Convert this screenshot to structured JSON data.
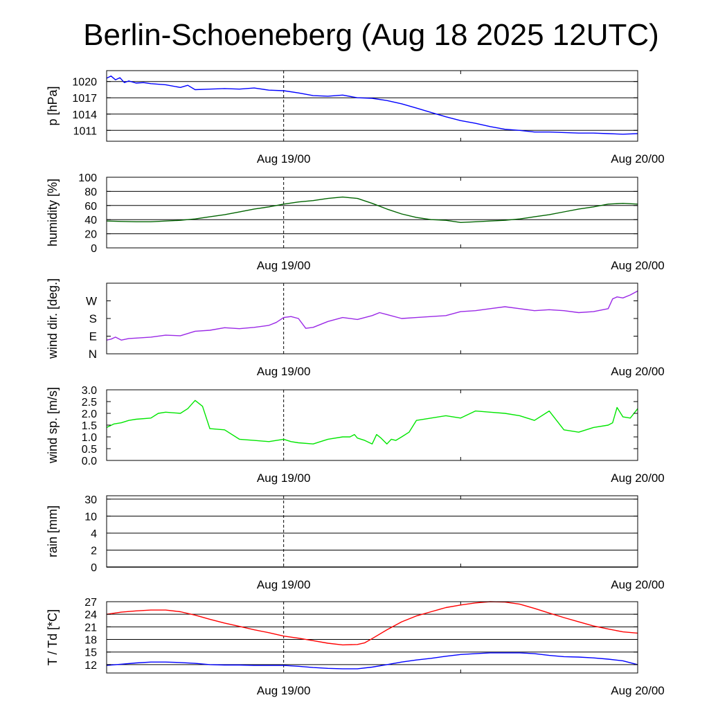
{
  "title": "Berlin-Schoeneberg (Aug 18 2025 12UTC)",
  "chart_data": [
    {
      "id": "pressure",
      "type": "line",
      "ylabel": "p [hPa]",
      "ylim": [
        1009,
        1022
      ],
      "yticks": [
        {
          "v": 1011,
          "l": "1011"
        },
        {
          "v": 1014,
          "l": "1014"
        },
        {
          "v": 1017,
          "l": "1017"
        },
        {
          "v": 1020,
          "l": "1020"
        }
      ],
      "hlines": [
        1011,
        1014,
        1017,
        1020
      ],
      "xticks": [
        {
          "v": 12,
          "l": "Aug 19/00"
        },
        {
          "v": 36,
          "l": "Aug 20/00"
        }
      ],
      "x_range_hours": [
        0,
        36
      ],
      "series": [
        {
          "color": "#0000ff",
          "x": [
            0,
            0.3,
            0.6,
            0.9,
            1.2,
            1.5,
            2,
            2.5,
            3,
            4,
            5,
            5.5,
            6,
            7,
            8,
            9,
            10,
            11,
            12,
            13,
            14,
            15,
            16,
            17,
            18,
            19,
            20,
            21,
            22,
            23,
            24,
            25,
            26,
            27,
            28,
            29,
            30,
            31,
            32,
            33,
            34,
            35,
            36
          ],
          "y": [
            1020.6,
            1021.0,
            1020.3,
            1020.7,
            1019.8,
            1020.1,
            1019.7,
            1019.8,
            1019.6,
            1019.4,
            1018.9,
            1019.3,
            1018.5,
            1018.6,
            1018.7,
            1018.6,
            1018.8,
            1018.4,
            1018.3,
            1017.9,
            1017.4,
            1017.3,
            1017.5,
            1017.0,
            1016.9,
            1016.5,
            1015.9,
            1015.1,
            1014.3,
            1013.5,
            1012.8,
            1012.3,
            1011.7,
            1011.2,
            1011.0,
            1010.7,
            1010.7,
            1010.6,
            1010.5,
            1010.5,
            1010.4,
            1010.3,
            1010.4
          ]
        }
      ]
    },
    {
      "id": "humidity",
      "type": "line",
      "ylabel": "humidity [%]",
      "ylim": [
        0,
        100
      ],
      "yticks": [
        {
          "v": 0,
          "l": "0"
        },
        {
          "v": 20,
          "l": "20"
        },
        {
          "v": 40,
          "l": "40"
        },
        {
          "v": 60,
          "l": "60"
        },
        {
          "v": 80,
          "l": "80"
        },
        {
          "v": 100,
          "l": "100"
        }
      ],
      "hlines": [
        20,
        40,
        60,
        80
      ],
      "xticks": [
        {
          "v": 12,
          "l": "Aug 19/00"
        },
        {
          "v": 36,
          "l": "Aug 20/00"
        }
      ],
      "x_range_hours": [
        0,
        36
      ],
      "series": [
        {
          "color": "#006400",
          "x": [
            0,
            1,
            2,
            3,
            4,
            5,
            6,
            7,
            8,
            9,
            10,
            11,
            12,
            13,
            14,
            15,
            16,
            17,
            18,
            19,
            20,
            21,
            22,
            23,
            24,
            25,
            26,
            27,
            28,
            29,
            30,
            31,
            32,
            33,
            34,
            35,
            36
          ],
          "y": [
            38,
            37.5,
            37,
            37,
            38,
            39,
            41,
            44,
            47,
            51,
            55,
            58,
            62,
            65,
            67,
            70,
            72,
            70,
            63,
            55,
            48,
            43,
            40,
            39,
            36,
            37,
            38,
            39,
            41,
            44,
            47,
            51,
            55,
            58,
            62,
            63,
            62
          ]
        }
      ]
    },
    {
      "id": "wind_direction",
      "type": "line",
      "ylabel": "wind dir. [deg.]",
      "ylim": [
        0,
        360
      ],
      "yticks": [
        {
          "v": 0,
          "l": "N"
        },
        {
          "v": 90,
          "l": "E"
        },
        {
          "v": 180,
          "l": "S"
        },
        {
          "v": 270,
          "l": "W"
        }
      ],
      "hlines": [],
      "xticks": [
        {
          "v": 12,
          "l": "Aug 19/00"
        },
        {
          "v": 36,
          "l": "Aug 20/00"
        }
      ],
      "x_range_hours": [
        0,
        36
      ],
      "series": [
        {
          "color": "#9a28e6",
          "x": [
            0,
            0.3,
            0.6,
            1,
            1.5,
            2,
            3,
            4,
            5,
            6,
            7,
            8,
            9,
            10,
            11,
            11.5,
            12,
            12.5,
            13,
            13.5,
            14,
            15,
            16,
            17,
            18,
            18.5,
            19,
            20,
            21,
            22,
            23,
            24,
            25,
            26,
            27,
            28,
            29,
            30,
            31,
            32,
            33,
            34,
            34.3,
            34.6,
            35,
            35.5,
            36
          ],
          "y": [
            70,
            75,
            85,
            70,
            78,
            80,
            85,
            95,
            92,
            115,
            120,
            133,
            128,
            135,
            145,
            160,
            185,
            190,
            180,
            130,
            135,
            165,
            185,
            175,
            195,
            210,
            200,
            180,
            185,
            190,
            195,
            215,
            220,
            230,
            240,
            230,
            220,
            225,
            220,
            210,
            215,
            230,
            280,
            290,
            285,
            300,
            320
          ]
        }
      ]
    },
    {
      "id": "wind_speed",
      "type": "line",
      "ylabel": "wind sp. [m/s]",
      "ylim": [
        0,
        3
      ],
      "yticks": [
        {
          "v": 0.0,
          "l": "0.0"
        },
        {
          "v": 0.5,
          "l": "0.5"
        },
        {
          "v": 1.0,
          "l": "1.0"
        },
        {
          "v": 1.5,
          "l": "1.5"
        },
        {
          "v": 2.0,
          "l": "2.0"
        },
        {
          "v": 2.5,
          "l": "2.5"
        },
        {
          "v": 3.0,
          "l": "3.0"
        }
      ],
      "hlines": [],
      "xticks": [
        {
          "v": 12,
          "l": "Aug 19/00"
        },
        {
          "v": 36,
          "l": "Aug 20/00"
        }
      ],
      "x_range_hours": [
        0,
        36
      ],
      "series": [
        {
          "color": "#00e600",
          "x": [
            0,
            0.5,
            1,
            1.5,
            2,
            3,
            3.5,
            4,
            5,
            5.5,
            6,
            6.5,
            7,
            8,
            9,
            10,
            11,
            12,
            12.5,
            13,
            14,
            15,
            16,
            16.5,
            16.8,
            17,
            17.5,
            18,
            18.3,
            18.6,
            19,
            19.3,
            19.6,
            20,
            20.5,
            21,
            22,
            23,
            24,
            25,
            26,
            27,
            28,
            29,
            30,
            31,
            32,
            33,
            34,
            34.3,
            34.6,
            35,
            35.5,
            36
          ],
          "y": [
            1.4,
            1.55,
            1.6,
            1.7,
            1.75,
            1.8,
            2.0,
            2.05,
            2.0,
            2.2,
            2.55,
            2.3,
            1.35,
            1.3,
            0.9,
            0.85,
            0.8,
            0.9,
            0.8,
            0.75,
            0.7,
            0.9,
            1.0,
            1.0,
            1.1,
            0.95,
            0.85,
            0.7,
            1.1,
            0.95,
            0.7,
            0.9,
            0.85,
            1.0,
            1.2,
            1.7,
            1.8,
            1.9,
            1.8,
            2.1,
            2.05,
            2.0,
            1.9,
            1.7,
            2.1,
            1.3,
            1.2,
            1.4,
            1.5,
            1.6,
            2.25,
            1.85,
            1.8,
            2.2
          ]
        }
      ]
    },
    {
      "id": "rain",
      "type": "line",
      "ylabel": "rain [mm]",
      "yticks": [
        {
          "v": 0,
          "l": "0"
        },
        {
          "v": 1,
          "l": "2"
        },
        {
          "v": 2,
          "l": "4"
        },
        {
          "v": 3,
          "l": "10"
        },
        {
          "v": 4,
          "l": "30"
        }
      ],
      "ylim": [
        0,
        4.2
      ],
      "hlines": [
        1,
        2,
        3,
        4
      ],
      "xticks": [
        {
          "v": 12,
          "l": "Aug 19/00"
        },
        {
          "v": 36,
          "l": "Aug 20/00"
        }
      ],
      "x_range_hours": [
        0,
        36
      ],
      "series": [
        {
          "color": "#000000",
          "x": [
            0,
            36
          ],
          "y": [
            0,
            0
          ]
        }
      ]
    },
    {
      "id": "temperature",
      "type": "line",
      "ylabel": "T / Td [*C]",
      "ylim": [
        10,
        27
      ],
      "yticks": [
        {
          "v": 12,
          "l": "12"
        },
        {
          "v": 15,
          "l": "15"
        },
        {
          "v": 18,
          "l": "18"
        },
        {
          "v": 21,
          "l": "21"
        },
        {
          "v": 24,
          "l": "24"
        },
        {
          "v": 27,
          "l": "27"
        }
      ],
      "hlines": [
        12,
        15,
        18,
        21,
        24,
        27
      ],
      "xticks": [
        {
          "v": 12,
          "l": "Aug 19/00"
        },
        {
          "v": 36,
          "l": "Aug 20/00"
        }
      ],
      "x_range_hours": [
        0,
        36
      ],
      "series": [
        {
          "name": "T",
          "color": "#ff0000",
          "x": [
            0,
            1,
            2,
            3,
            4,
            5,
            6,
            7,
            8,
            9,
            10,
            11,
            12,
            13,
            14,
            15,
            16,
            17,
            17.5,
            18,
            19,
            20,
            21,
            22,
            23,
            24,
            25,
            26,
            27,
            28,
            29,
            30,
            31,
            32,
            33,
            34,
            35,
            36
          ],
          "y": [
            24.0,
            24.5,
            24.8,
            25.0,
            25.0,
            24.6,
            23.8,
            22.8,
            21.9,
            21.1,
            20.3,
            19.6,
            18.8,
            18.3,
            17.7,
            17.1,
            16.7,
            16.8,
            17.2,
            18.2,
            20.3,
            22.2,
            23.6,
            24.6,
            25.6,
            26.2,
            26.7,
            27.0,
            26.9,
            26.4,
            25.4,
            24.3,
            23.2,
            22.2,
            21.2,
            20.5,
            19.8,
            19.5
          ]
        },
        {
          "name": "Td",
          "color": "#0000ff",
          "x": [
            0,
            1,
            2,
            3,
            4,
            5,
            6,
            7,
            8,
            9,
            10,
            11,
            12,
            13,
            14,
            15,
            16,
            17,
            18,
            19,
            20,
            21,
            22,
            23,
            24,
            25,
            26,
            27,
            28,
            29,
            30,
            31,
            32,
            33,
            34,
            35,
            36
          ],
          "y": [
            11.8,
            12.1,
            12.4,
            12.6,
            12.6,
            12.5,
            12.3,
            12.0,
            11.9,
            11.9,
            11.8,
            11.8,
            11.8,
            11.6,
            11.3,
            11.1,
            11.0,
            11.0,
            11.4,
            12.0,
            12.6,
            13.1,
            13.5,
            14.0,
            14.4,
            14.6,
            14.8,
            14.8,
            14.8,
            14.6,
            14.2,
            13.9,
            13.8,
            13.6,
            13.3,
            12.9,
            12.0
          ]
        }
      ]
    }
  ]
}
